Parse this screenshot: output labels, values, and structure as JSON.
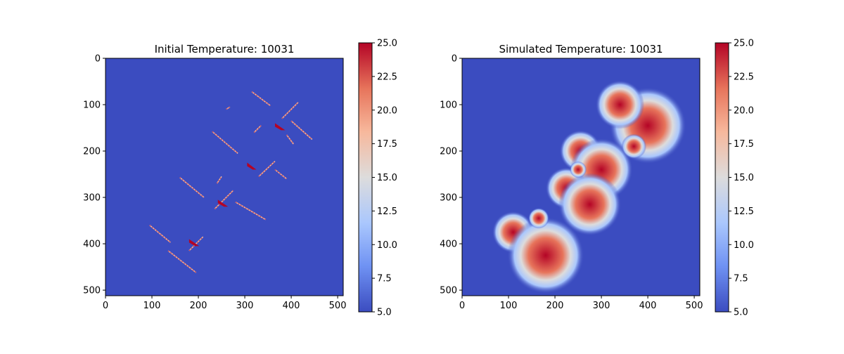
{
  "colormap": {
    "name": "coolwarm",
    "stops": [
      "#3b4cc0",
      "#6f92f3",
      "#aac7fd",
      "#dddcdc",
      "#f7b89c",
      "#e7745b",
      "#b40426"
    ],
    "background": "#3b4cc0"
  },
  "chart_data": [
    {
      "type": "heatmap",
      "title": "Initial Temperature: 10031",
      "xlim": [
        0,
        512
      ],
      "ylim": [
        512,
        0
      ],
      "xticks": [
        0,
        100,
        200,
        300,
        400,
        500
      ],
      "yticks": [
        0,
        100,
        200,
        300,
        400,
        500
      ],
      "clim": [
        5,
        25
      ],
      "colorbar_ticks": [
        "5.0",
        "7.5",
        "10.0",
        "12.5",
        "15.0",
        "17.5",
        "20.0",
        "22.5",
        "25.0"
      ],
      "values_note": "",
      "segments": [
        {
          "x1": 95,
          "y1": 360,
          "x2": 140,
          "y2": 397
        },
        {
          "x1": 135,
          "y1": 415,
          "x2": 195,
          "y2": 462
        },
        {
          "x1": 160,
          "y1": 257,
          "x2": 212,
          "y2": 300
        },
        {
          "x1": 230,
          "y1": 158,
          "x2": 285,
          "y2": 205
        },
        {
          "x1": 315,
          "y1": 72,
          "x2": 355,
          "y2": 102
        },
        {
          "x1": 400,
          "y1": 135,
          "x2": 445,
          "y2": 175
        },
        {
          "x1": 380,
          "y1": 130,
          "x2": 415,
          "y2": 95
        },
        {
          "x1": 330,
          "y1": 255,
          "x2": 365,
          "y2": 222
        },
        {
          "x1": 235,
          "y1": 325,
          "x2": 275,
          "y2": 285
        },
        {
          "x1": 180,
          "y1": 415,
          "x2": 210,
          "y2": 385
        },
        {
          "x1": 260,
          "y1": 110,
          "x2": 268,
          "y2": 105
        },
        {
          "x1": 365,
          "y1": 240,
          "x2": 390,
          "y2": 260
        },
        {
          "x1": 280,
          "y1": 310,
          "x2": 345,
          "y2": 348
        },
        {
          "x1": 320,
          "y1": 160,
          "x2": 335,
          "y2": 145
        },
        {
          "x1": 390,
          "y1": 165,
          "x2": 405,
          "y2": 185
        },
        {
          "x1": 240,
          "y1": 270,
          "x2": 250,
          "y2": 255
        }
      ],
      "hot_patches": [
        {
          "x": 365,
          "y": 140,
          "w": 22,
          "h": 15
        },
        {
          "x": 305,
          "y": 225,
          "w": 20,
          "h": 15
        },
        {
          "x": 242,
          "y": 305,
          "w": 22,
          "h": 15
        },
        {
          "x": 180,
          "y": 390,
          "w": 22,
          "h": 15
        }
      ]
    },
    {
      "type": "heatmap",
      "title": "Simulated Temperature: 10031",
      "xlim": [
        0,
        512
      ],
      "ylim": [
        512,
        0
      ],
      "xticks": [
        0,
        100,
        200,
        300,
        400,
        500
      ],
      "yticks": [
        0,
        100,
        200,
        300,
        400,
        500
      ],
      "clim": [
        5,
        25
      ],
      "colorbar_ticks": [
        "5.0",
        "7.5",
        "10.0",
        "12.5",
        "15.0",
        "17.5",
        "20.0",
        "22.5",
        "25.0"
      ],
      "warm_zones": [
        {
          "x": 400,
          "y": 145,
          "r": 55
        },
        {
          "x": 340,
          "y": 100,
          "r": 35
        },
        {
          "x": 255,
          "y": 200,
          "r": 30
        },
        {
          "x": 300,
          "y": 240,
          "r": 45
        },
        {
          "x": 225,
          "y": 280,
          "r": 30
        },
        {
          "x": 275,
          "y": 315,
          "r": 45
        },
        {
          "x": 110,
          "y": 375,
          "r": 30
        },
        {
          "x": 180,
          "y": 425,
          "r": 55
        },
        {
          "x": 165,
          "y": 345,
          "r": 15
        },
        {
          "x": 250,
          "y": 240,
          "r": 12
        },
        {
          "x": 370,
          "y": 190,
          "r": 18
        }
      ]
    }
  ]
}
